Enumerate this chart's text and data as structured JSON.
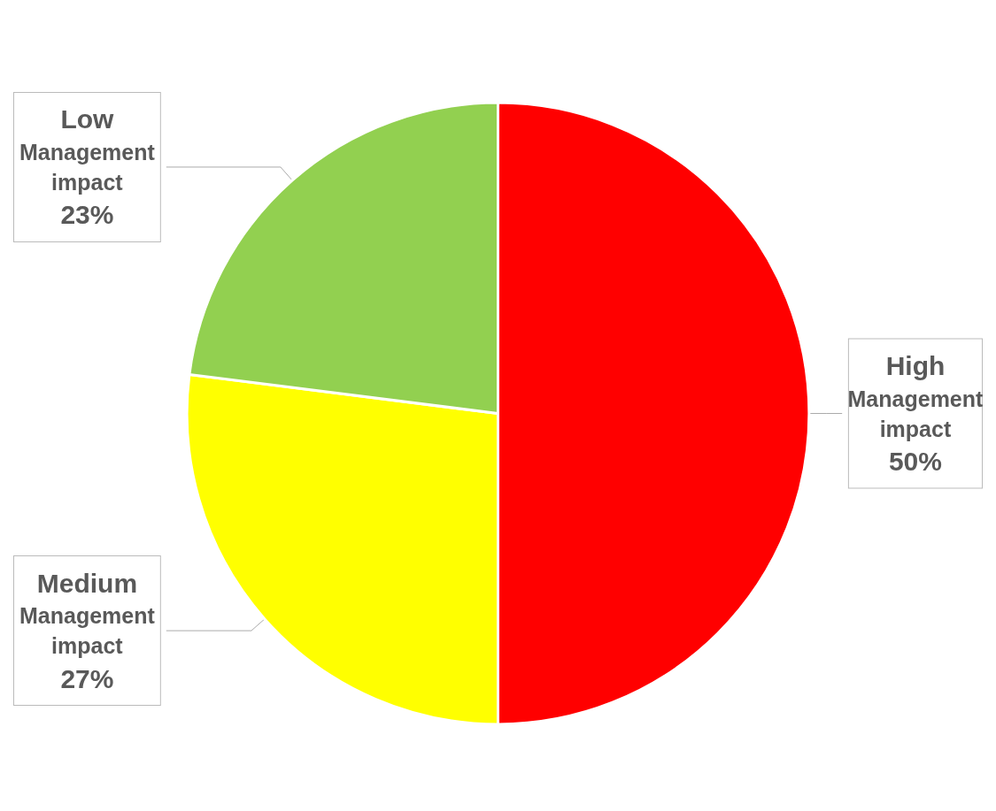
{
  "chart_data": {
    "type": "pie",
    "categories": [
      "High Management impact",
      "Medium Management impact",
      "Low Management impact"
    ],
    "values": [
      50,
      27,
      23
    ],
    "colors": [
      "#ff0000",
      "#ffff00",
      "#92d050"
    ],
    "value_labels": [
      "50%",
      "27%",
      "23%"
    ],
    "legend": false
  }
}
